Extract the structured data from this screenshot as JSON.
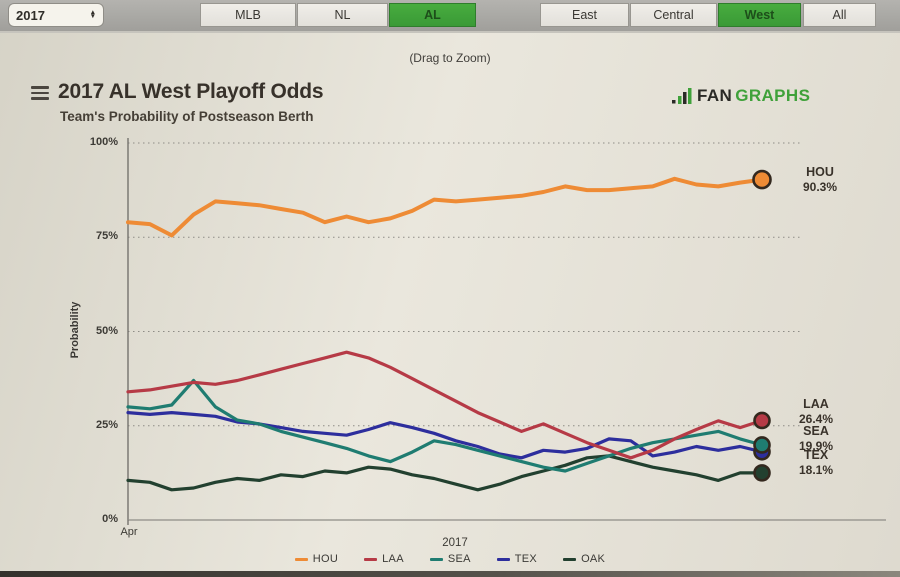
{
  "toolbar": {
    "season_select": {
      "value": "2017"
    },
    "league_buttons": [
      {
        "label": "MLB",
        "selected": false
      },
      {
        "label": "NL",
        "selected": false
      },
      {
        "label": "AL",
        "selected": true
      }
    ],
    "division_buttons": [
      {
        "label": "East",
        "selected": false
      },
      {
        "label": "Central",
        "selected": false
      },
      {
        "label": "West",
        "selected": true
      },
      {
        "label": "All",
        "selected": false
      }
    ]
  },
  "chart_header": {
    "drag_hint": "(Drag to Zoom)",
    "title": "2017 AL West Playoff Odds",
    "subtitle": "Team's Probability of Postseason Berth",
    "logo": {
      "fan": "FAN",
      "graphs": "GRAPHS"
    }
  },
  "chart_data": {
    "type": "line",
    "title": "2017 AL West Playoff Odds",
    "subtitle": "Team's Probability of Postseason Berth",
    "ylabel": "Probability",
    "ylim": [
      0,
      100
    ],
    "yticks": [
      "100%",
      "75%",
      "50%",
      "25%",
      "0%"
    ],
    "x_first_tick": "Apr",
    "xlabel": "2017",
    "grid": "horizontal-dotted",
    "legend_position": "bottom",
    "x_unit": "weeks of 2017 season (Apr through season end)",
    "series": [
      {
        "name": "HOU",
        "color": "#ee8b35",
        "end_label": "HOU",
        "end_value": "90.3%",
        "values": [
          79,
          78.5,
          75.5,
          81,
          84.5,
          84,
          83.5,
          82.5,
          81.5,
          79,
          80.5,
          79,
          80,
          82,
          85,
          84.5,
          85,
          85.5,
          86,
          87,
          88.5,
          87.5,
          87.5,
          88,
          88.5,
          90.5,
          89,
          88.5,
          89.5,
          90.3
        ]
      },
      {
        "name": "LAA",
        "color": "#b63a46",
        "end_label": "LAA",
        "end_value": "26.4%",
        "values": [
          34,
          34.5,
          35.5,
          36.5,
          36,
          37,
          38.5,
          40,
          41.5,
          43,
          44.5,
          43,
          40.5,
          37.5,
          34.5,
          31.5,
          28.5,
          26,
          23.5,
          25.5,
          23,
          20.5,
          18.5,
          16.5,
          18.5,
          21.5,
          24,
          26.3,
          24.5,
          26.4
        ]
      },
      {
        "name": "SEA",
        "color": "#1f7c71",
        "end_label": "SEA",
        "end_value": "19.9%",
        "values": [
          30,
          29.5,
          30.5,
          37,
          30,
          26.5,
          25.5,
          23.5,
          22,
          20.5,
          19,
          17,
          15.5,
          18,
          21,
          20,
          18.5,
          17,
          15.5,
          14,
          13,
          15,
          17,
          19,
          20.5,
          21.5,
          22.5,
          23.5,
          21.5,
          19.9
        ]
      },
      {
        "name": "TEX",
        "color": "#2d2e9d",
        "end_label": "TEX",
        "end_value": "18.1%",
        "values": [
          28.5,
          28,
          28.5,
          28,
          27.5,
          26,
          25.5,
          24.5,
          23.5,
          23,
          22.5,
          24,
          25.8,
          24.5,
          23,
          21,
          19.5,
          17.5,
          16.5,
          18.5,
          18,
          19,
          21.5,
          21,
          17,
          18,
          19.5,
          18.5,
          19.5,
          18.1
        ]
      },
      {
        "name": "OAK",
        "color": "#22402f",
        "end_label": null,
        "end_value": null,
        "values": [
          10.5,
          10,
          8,
          8.5,
          10,
          11,
          10.5,
          12,
          11.5,
          13,
          12.5,
          14,
          13.5,
          12,
          11,
          9.5,
          8,
          9.5,
          11.5,
          13,
          14.5,
          16.5,
          17,
          15.5,
          14,
          13,
          12,
          10.5,
          12.5,
          12.5
        ]
      }
    ]
  },
  "colors": {
    "selected_button_green": "#3fa33c",
    "logo_green": "#3fa13a",
    "axis_gray": "#8e8c86"
  }
}
